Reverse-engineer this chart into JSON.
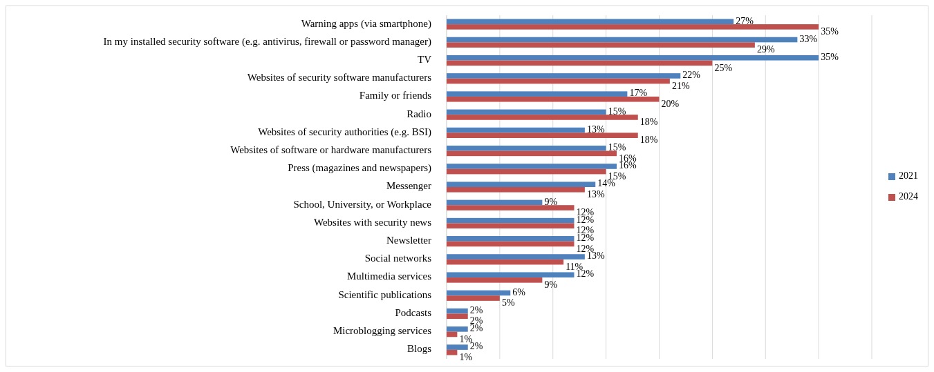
{
  "chart_data": {
    "type": "bar",
    "orientation": "horizontal",
    "categories": [
      "Warning apps (via smartphone)",
      "In my installed security software (e.g. antivirus, firewall or password manager)",
      "TV",
      "Websites of security software manufacturers",
      "Family or friends",
      "Radio",
      "Websites of security authorities (e.g. BSI)",
      "Websites of software or hardware manufacturers",
      "Press (magazines and newspapers)",
      "Messenger",
      "School, University, or Workplace",
      "Websites with security news",
      "Newsletter",
      "Social networks",
      "Multimedia services",
      "Scientific publications",
      "Podcasts",
      "Microblogging services",
      "Blogs"
    ],
    "series": [
      {
        "name": "2021",
        "color": "#4f81bd",
        "values": [
          27,
          33,
          35,
          22,
          17,
          15,
          13,
          15,
          16,
          14,
          9,
          12,
          12,
          13,
          12,
          6,
          2,
          2,
          2
        ],
        "value_labels": [
          "27%",
          "33%",
          "35%",
          "22%",
          "17%",
          "15%",
          "13%",
          "15%",
          "16%",
          "14%",
          "9%",
          "12%",
          "12%",
          "13%",
          "12%",
          "6%",
          "2%",
          "2%",
          "2%"
        ]
      },
      {
        "name": "2024",
        "color": "#c0504d",
        "values": [
          35,
          29,
          25,
          21,
          20,
          18,
          18,
          16,
          15,
          13,
          12,
          12,
          12,
          11,
          9,
          5,
          2,
          1,
          1
        ],
        "value_labels": [
          "35%",
          "29%",
          "25%",
          "21%",
          "20%",
          "18%",
          "18%",
          "16%",
          "15%",
          "13%",
          "12%",
          "12%",
          "12%",
          "11%",
          "9%",
          "5%",
          "2%",
          "1%",
          "1%"
        ]
      }
    ],
    "xlim": [
      0,
      40
    ],
    "xticks": [
      {
        "value": 0,
        "label": null
      },
      {
        "value": 5,
        "label": null
      },
      {
        "value": 10,
        "label": null
      },
      {
        "value": 15,
        "label": null
      },
      {
        "value": 20,
        "label": null
      },
      {
        "value": 25,
        "label": null
      },
      {
        "value": 30,
        "label": null
      },
      {
        "value": 35,
        "label": null
      },
      {
        "value": 40,
        "label": null
      }
    ],
    "grid": "x",
    "legend": "right",
    "tick_labels": "y"
  }
}
